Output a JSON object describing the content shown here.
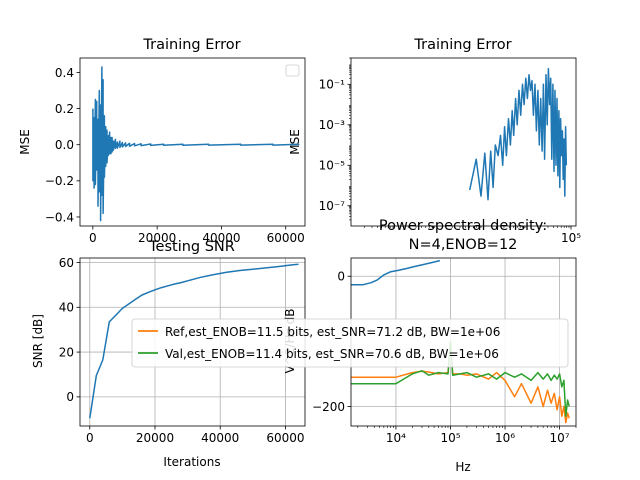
{
  "chart_data": [
    {
      "type": "line",
      "title": "Training Error",
      "ylabel": "MSE",
      "xlabel": "",
      "xlim": [
        -4000,
        66000
      ],
      "ylim": [
        -0.45,
        0.48
      ],
      "xticks": [
        0,
        20000,
        40000,
        60000
      ],
      "xtick_labels": [
        "0",
        "20000",
        "40000",
        "60000"
      ],
      "yticks": [
        -0.4,
        -0.2,
        0.0,
        0.2,
        0.4
      ],
      "ytick_labels": [
        "−0.4",
        "−0.2",
        "0.0",
        "0.2",
        "0.4"
      ],
      "grid": false,
      "legend": "top-right (empty)",
      "series": [
        {
          "color": "#1f77b4",
          "x": [
            0,
            400,
            800,
            1200,
            1600,
            2000,
            2400,
            2800,
            3200,
            3600,
            4000,
            4400,
            4800,
            5200,
            5600,
            6000,
            6400,
            7000,
            7600,
            8400,
            9200,
            10200,
            11400,
            13000,
            15000,
            18000,
            22000,
            28000,
            36000,
            46000,
            56000,
            64000
          ],
          "upper": [
            0.2,
            0.15,
            0.25,
            0.24,
            0.14,
            0.3,
            0.22,
            0.43,
            0.36,
            0.16,
            0.1,
            0.08,
            0.05,
            0.07,
            0.04,
            0.04,
            0.02,
            0.03,
            0.015,
            0.02,
            0.012,
            0.01,
            0.008,
            0.006,
            0.005,
            0.004,
            0.003,
            0.003,
            0.002,
            0.002,
            0.002,
            0.002
          ],
          "lower": [
            -0.2,
            -0.24,
            -0.22,
            -0.14,
            -0.34,
            -0.26,
            -0.42,
            -0.28,
            -0.38,
            -0.18,
            -0.12,
            -0.1,
            -0.06,
            -0.05,
            -0.05,
            -0.04,
            -0.03,
            -0.02,
            -0.02,
            -0.015,
            -0.012,
            -0.01,
            -0.008,
            -0.006,
            -0.005,
            -0.004,
            -0.003,
            -0.003,
            -0.002,
            -0.002,
            -0.002,
            -0.002
          ]
        }
      ]
    },
    {
      "type": "line",
      "title": "Training Error",
      "ylabel": "MSE",
      "xlabel": "",
      "xscale": "log",
      "yscale": "log",
      "xlim": [
        1,
        130000
      ],
      "ylim": [
        1e-08,
        2
      ],
      "xticks": [
        100000
      ],
      "xtick_labels": [
        "10⁵"
      ],
      "yticks": [
        1e-07,
        1e-05,
        0.001,
        0.1
      ],
      "ytick_labels": [
        "10⁻⁷",
        "10⁻⁵",
        "10⁻³",
        "10⁻¹"
      ],
      "grid": false,
      "series": [
        {
          "color": "#1f77b4",
          "x": [
            500,
            700,
            900,
            1100,
            1300,
            1500,
            1700,
            1900,
            2200,
            2500,
            2800,
            3100,
            3400,
            3800,
            4200,
            4600,
            5000,
            5500,
            6000,
            6600,
            7200,
            7900,
            8600,
            9400,
            10200,
            11100,
            12000,
            13000,
            14000,
            15200,
            16400,
            17700,
            19000,
            20500,
            22000,
            23600,
            25200,
            27000,
            28800,
            30700,
            32600,
            34600,
            36700,
            38800,
            41000,
            43300,
            45600,
            48000,
            50500,
            53000,
            55600,
            58200,
            61000,
            63800,
            66600,
            69500,
            72400,
            75400,
            78400
          ],
          "y": [
            6e-07,
            2e-05,
            3e-07,
            4e-05,
            2e-07,
            5e-05,
            8e-07,
            0.0001,
            3e-05,
            0.0003,
            1e-05,
            0.0008,
            3e-05,
            0.002,
            0.0001,
            0.005,
            0.0003,
            0.02,
            0.001,
            0.05,
            0.003,
            0.1,
            0.01,
            0.2,
            0.02,
            0.3,
            0.05,
            0.15,
            0.003,
            0.1,
            0.0005,
            0.05,
            0.0001,
            0.02,
            5e-05,
            0.1,
            2e-05,
            0.3,
            0.001,
            0.6,
            0.01,
            0.2,
            2e-05,
            0.1,
            5e-06,
            0.05,
            1e-05,
            0.02,
            3e-06,
            0.005,
            8e-07,
            0.002,
            3e-05,
            0.0005,
            2e-06,
            0.0002,
            3e-07,
            0.0008,
            1e-05
          ]
        }
      ]
    },
    {
      "type": "line",
      "title": "Testing SNR",
      "ylabel": "SNR [dB]",
      "xlabel": "Iterations",
      "xlim": [
        -3000,
        66000
      ],
      "ylim": [
        -13,
        62
      ],
      "xticks": [
        0,
        20000,
        40000,
        60000
      ],
      "xtick_labels": [
        "0",
        "20000",
        "40000",
        "60000"
      ],
      "yticks": [
        0,
        20,
        40,
        60
      ],
      "ytick_labels": [
        "0",
        "20",
        "40",
        "60"
      ],
      "grid": true,
      "series": [
        {
          "color": "#1f77b4",
          "x": [
            0,
            2000,
            4000,
            6000,
            8000,
            10000,
            12000,
            14000,
            16000,
            18000,
            20000,
            22000,
            24000,
            26000,
            28000,
            30000,
            34000,
            38000,
            42000,
            46000,
            50000,
            54000,
            58000,
            62000,
            64000
          ],
          "y": [
            -9.5,
            9.5,
            16.5,
            33.5,
            36.5,
            39.5,
            41.5,
            43.5,
            45.5,
            46.7,
            47.8,
            48.8,
            49.6,
            50.4,
            51.0,
            51.8,
            53.4,
            54.6,
            55.6,
            56.4,
            57.0,
            57.6,
            58.2,
            58.9,
            59.2
          ]
        }
      ]
    },
    {
      "type": "line",
      "title": "Power spectral density:\nN=4,ENOB=12",
      "title_lines": [
        "Power spectral density:",
        "N=4,ENOB=12"
      ],
      "ylabel": "V^2/Hz dB",
      "xlabel": "Hz",
      "xscale": "log",
      "xlim": [
        1500,
        20000000
      ],
      "ylim": [
        -230,
        28
      ],
      "xticks": [
        10000,
        100000,
        1000000,
        10000000
      ],
      "xtick_labels": [
        "10⁴",
        "10⁵",
        "10⁶",
        "10⁷"
      ],
      "yticks": [
        -200,
        0
      ],
      "ytick_labels": [
        "−200",
        "0"
      ],
      "grid": true,
      "legend": "center",
      "series": [
        {
          "name": "",
          "color": "#1f77b4",
          "x": [
            1500,
            2500,
            3500,
            4500,
            6000,
            8000,
            11000,
            16000,
            22000,
            32000,
            45000,
            64000
          ],
          "y": [
            -13,
            -13,
            -10,
            -6,
            2,
            7,
            9,
            12,
            15,
            18,
            21,
            24
          ]
        },
        {
          "name": "Ref,est_ENOB=11.5 bits, est_SNR=71.2 dB, BW=1e+06",
          "color": "#ff7f0e",
          "x": [
            1500,
            3000,
            6000,
            10000,
            20000,
            30000,
            40000,
            60000,
            90000,
            100000,
            110000,
            150000,
            200000,
            300000,
            500000,
            700000,
            1000000,
            1500000,
            2000000,
            3000000,
            4000000,
            5000000,
            6000000,
            7000000,
            8000000,
            9000000,
            10000000,
            11000000,
            12000000,
            13000000,
            14000000,
            15000000
          ],
          "y": [
            -155,
            -155,
            -155,
            -155,
            -148,
            -146,
            -147,
            -150,
            -148,
            -100,
            -150,
            -150,
            -152,
            -150,
            -158,
            -148,
            -160,
            -185,
            -165,
            -195,
            -170,
            -200,
            -175,
            -195,
            -180,
            -205,
            -185,
            -215,
            -200,
            -225,
            -210,
            -218
          ]
        },
        {
          "name": "Val,est_ENOB=11.4 bits, est_SNR=70.6 dB, BW=1e+06",
          "color": "#2ca02c",
          "x": [
            1500,
            3000,
            6000,
            10000,
            20000,
            30000,
            40000,
            60000,
            90000,
            100000,
            110000,
            150000,
            200000,
            300000,
            500000,
            700000,
            1000000,
            1500000,
            2000000,
            3000000,
            4000000,
            5000000,
            6000000,
            7000000,
            8000000,
            9000000,
            10000000,
            11000000,
            12000000,
            13000000,
            14000000,
            15000000
          ],
          "y": [
            -165,
            -165,
            -165,
            -165,
            -150,
            -145,
            -152,
            -148,
            -150,
            -100,
            -152,
            -150,
            -148,
            -155,
            -150,
            -158,
            -148,
            -155,
            -150,
            -160,
            -148,
            -158,
            -150,
            -160,
            -152,
            -158,
            -150,
            -170,
            -160,
            -215,
            -190,
            -200
          ]
        }
      ]
    }
  ]
}
